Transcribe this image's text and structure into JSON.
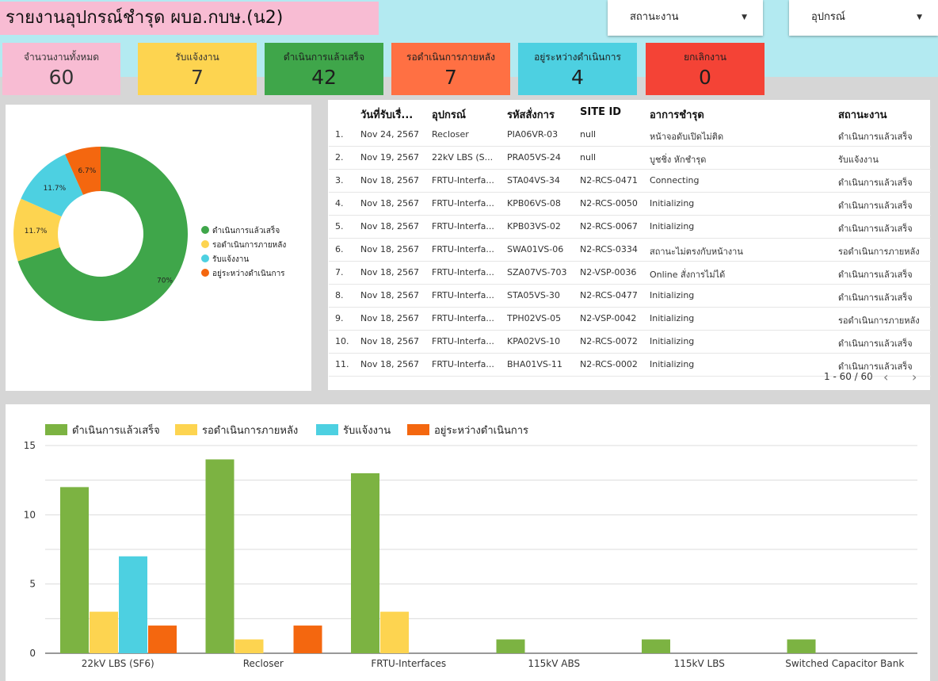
{
  "header": {
    "title": "รายงานอุปกรณ์ชำรุด ผบอ.กบษ.(น2)",
    "filters": [
      {
        "label": "สถานะงาน"
      },
      {
        "label": "อุปกรณ์"
      }
    ]
  },
  "kpis": [
    {
      "label": "จำนวนงานทั้งหมด",
      "value": "60",
      "color": "#f8bcd3",
      "text": "#333"
    },
    {
      "label": "รับแจ้งงาน",
      "value": "7",
      "color": "#fdd450",
      "text": "#333"
    },
    {
      "label": "ดำเนินการแล้วเสร็จ",
      "value": "42",
      "color": "#3fa64a",
      "text": "#1e1e1e"
    },
    {
      "label": "รอดำเนินการภายหลัง",
      "value": "7",
      "color": "#ff7043",
      "text": "#1e1e1e"
    },
    {
      "label": "อยู่ระหว่างดำเนินการ",
      "value": "4",
      "color": "#4dd0e1",
      "text": "#1e1e1e"
    },
    {
      "label": "ยกเลิกงาน",
      "value": "0",
      "color": "#f44336",
      "text": "#1e1e1e"
    }
  ],
  "pie": {
    "slices": [
      {
        "label": "ดำเนินการแล้วเสร็จ",
        "value": 70,
        "text": "70%",
        "color": "#3fa64a"
      },
      {
        "label": "รอดำเนินการภายหลัง",
        "value": 11.7,
        "text": "11.7%",
        "color": "#fdd450"
      },
      {
        "label": "รับแจ้งงาน",
        "value": 11.7,
        "text": "11.7%",
        "color": "#4dd0e1"
      },
      {
        "label": "อยู่ระหว่างดำเนินการ",
        "value": 6.7,
        "text": "6.7%",
        "color": "#f4670f"
      }
    ]
  },
  "table": {
    "columns": [
      "",
      "วันที่รับเรื่...",
      "อุปกรณ์",
      "รหัสสั่งการ",
      "SITE ID",
      "อาการชำรุด",
      "สถานะงาน"
    ],
    "rows": [
      [
        "1.",
        "Nov 24, 2567",
        "Recloser",
        "PIA06VR-03",
        "null",
        "หน้าจอดับเปิดไม่ติด",
        "ดำเนินการแล้วเสร็จ"
      ],
      [
        "2.",
        "Nov 19, 2567",
        "22kV LBS (S...",
        "PRA05VS-24",
        "null",
        "บูชชิ่ง หักชำรุด",
        "รับแจ้งงาน"
      ],
      [
        "3.",
        "Nov 18, 2567",
        "FRTU-Interfa...",
        "STA04VS-34",
        "N2-RCS-0471",
        "Connecting",
        "ดำเนินการแล้วเสร็จ"
      ],
      [
        "4.",
        "Nov 18, 2567",
        "FRTU-Interfa...",
        "KPB06VS-08",
        "N2-RCS-0050",
        "Initializing",
        "ดำเนินการแล้วเสร็จ"
      ],
      [
        "5.",
        "Nov 18, 2567",
        "FRTU-Interfa...",
        "KPB03VS-02",
        "N2-RCS-0067",
        "Initializing",
        "ดำเนินการแล้วเสร็จ"
      ],
      [
        "6.",
        "Nov 18, 2567",
        "FRTU-Interfa...",
        "SWA01VS-06",
        "N2-RCS-0334",
        "สถานะไม่ตรงกับหน้างาน",
        "รอดำเนินการภายหลัง"
      ],
      [
        "7.",
        "Nov 18, 2567",
        "FRTU-Interfa...",
        "SZA07VS-703",
        "N2-VSP-0036",
        "Online สั่งการไม่ได้",
        "ดำเนินการแล้วเสร็จ"
      ],
      [
        "8.",
        "Nov 18, 2567",
        "FRTU-Interfa...",
        "STA05VS-30",
        "N2-RCS-0477",
        "Initializing",
        "ดำเนินการแล้วเสร็จ"
      ],
      [
        "9.",
        "Nov 18, 2567",
        "FRTU-Interfa...",
        "TPH02VS-05",
        "N2-VSP-0042",
        "Initializing",
        "รอดำเนินการภายหลัง"
      ],
      [
        "10.",
        "Nov 18, 2567",
        "FRTU-Interfa...",
        "KPA02VS-10",
        "N2-RCS-0072",
        "Initializing",
        "ดำเนินการแล้วเสร็จ"
      ],
      [
        "11.",
        "Nov 18, 2567",
        "FRTU-Interfa...",
        "BHA01VS-11",
        "N2-RCS-0002",
        "Initializing",
        "ดำเนินการแล้วเสร็จ"
      ]
    ],
    "pager": "1 - 60 / 60",
    "prev_icon": "chevron-left-icon",
    "next_icon": "chevron-right-icon"
  },
  "chart_data": {
    "type": "bar",
    "categories": [
      "22kV LBS (SF6)",
      "Recloser",
      "FRTU-Interfaces",
      "115kV ABS",
      "115kV LBS",
      "Switched Capacitor Bank"
    ],
    "series": [
      {
        "name": "ดำเนินการแล้วเสร็จ",
        "color": "#7cb342",
        "values": [
          12,
          14,
          13,
          1,
          1,
          1
        ]
      },
      {
        "name": "รอดำเนินการภายหลัง",
        "color": "#fdd450",
        "values": [
          3,
          1,
          3,
          0,
          0,
          0
        ]
      },
      {
        "name": "รับแจ้งงาน",
        "color": "#4dd0e1",
        "values": [
          7,
          0,
          0,
          0,
          0,
          0
        ]
      },
      {
        "name": "อยู่ระหว่างดำเนินการ",
        "color": "#f4670f",
        "values": [
          2,
          2,
          0,
          0,
          0,
          0
        ]
      }
    ],
    "yticks": [
      "0",
      "5",
      "10",
      "15"
    ],
    "ylim": [
      0,
      15
    ],
    "grid": true,
    "legend": "top-left"
  }
}
